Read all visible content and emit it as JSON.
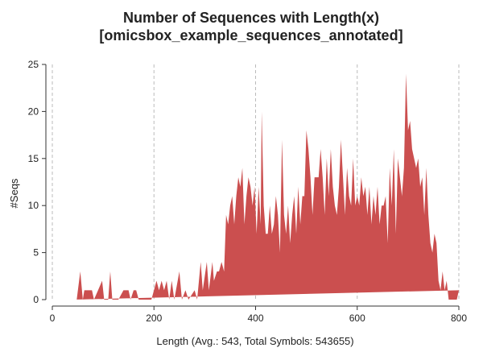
{
  "chart_data": {
    "type": "area",
    "title": [
      "Number of Sequences with Length(x)",
      "[omicsbox_example_sequences_annotated]"
    ],
    "x_label": "Length (Avg.: 543, Total Symbols: 543655)",
    "y_label": "#Seqs",
    "color": "#cb4f4f",
    "xlim": [
      0,
      800
    ],
    "xticks": [
      0,
      200,
      400,
      600,
      800
    ],
    "ylim": [
      0,
      25
    ],
    "yticks": [
      0,
      5,
      10,
      15,
      20,
      25
    ],
    "x_grid": true,
    "x": [
      40,
      48,
      55,
      60,
      63,
      70,
      78,
      82,
      90,
      98,
      102,
      110,
      114,
      118,
      130,
      140,
      150,
      154,
      160,
      165,
      170,
      195,
      200,
      205,
      210,
      215,
      220,
      225,
      230,
      235,
      240,
      250,
      255,
      262,
      268,
      280,
      285,
      292,
      296,
      304,
      308,
      315,
      318,
      324,
      328,
      333,
      338,
      342,
      346,
      350,
      354,
      358,
      362,
      366,
      370,
      374,
      378,
      382,
      386,
      390,
      394,
      398,
      402,
      406,
      410,
      412,
      416,
      420,
      424,
      428,
      432,
      436,
      440,
      444,
      448,
      452,
      456,
      460,
      464,
      468,
      472,
      476,
      480,
      484,
      488,
      492,
      496,
      500,
      504,
      508,
      512,
      516,
      520,
      524,
      528,
      532,
      536,
      540,
      544,
      548,
      552,
      556,
      560,
      564,
      568,
      572,
      576,
      580,
      584,
      588,
      592,
      596,
      600,
      604,
      608,
      612,
      616,
      620,
      624,
      628,
      632,
      636,
      640,
      644,
      648,
      652,
      656,
      660,
      664,
      668,
      672,
      676,
      680,
      684,
      688,
      692,
      696,
      700,
      704,
      708,
      712,
      716,
      720,
      724,
      728,
      732,
      736,
      740,
      744,
      748,
      752,
      756,
      760,
      764,
      768,
      772,
      776,
      780,
      796,
      800
    ],
    "values": [
      0,
      0,
      3,
      0,
      1,
      1,
      1,
      0,
      1,
      2,
      0,
      0,
      3,
      0,
      0,
      1,
      1,
      0,
      1,
      1,
      0,
      0,
      1,
      2,
      1,
      2,
      1,
      2,
      0,
      2,
      0,
      3,
      0,
      1,
      0,
      1,
      0,
      4,
      1,
      4,
      1,
      4,
      2,
      3,
      3,
      4,
      3,
      9,
      8,
      10,
      11,
      8,
      11,
      13,
      12,
      14,
      8,
      11,
      13,
      12,
      10,
      12,
      7,
      12,
      8,
      20,
      10,
      7,
      7,
      10,
      7,
      8,
      11,
      9,
      5,
      17,
      9,
      7,
      10,
      6,
      9,
      11,
      7,
      12,
      8,
      11,
      11,
      18,
      16,
      13,
      9,
      13,
      13,
      13,
      16,
      13,
      9,
      15,
      11,
      16,
      12,
      10,
      9,
      12,
      17,
      13,
      9,
      14,
      11,
      10,
      15,
      10,
      11,
      10,
      13,
      11,
      12,
      9,
      12,
      8,
      11,
      9,
      12,
      8,
      10,
      10,
      11,
      6,
      14,
      10,
      16,
      7,
      15,
      13,
      11,
      14,
      24,
      18,
      19,
      16,
      15,
      14,
      15,
      12,
      13,
      9,
      14,
      9,
      6,
      5,
      7,
      6,
      2,
      1,
      3,
      1,
      2,
      0,
      0,
      1
    ]
  }
}
